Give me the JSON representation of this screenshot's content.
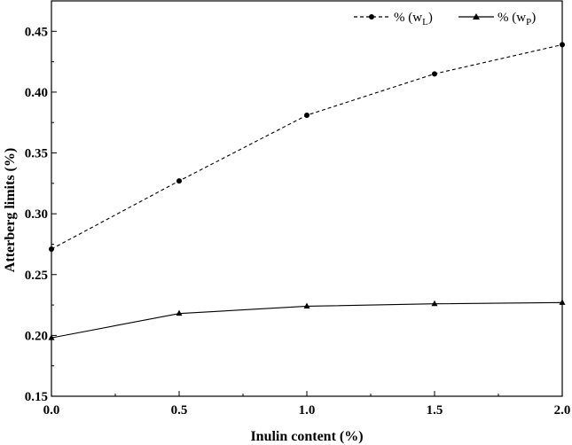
{
  "chart_data": {
    "type": "line",
    "xlabel": "Inulin content (%)",
    "ylabel": "Atterberg limits (%)",
    "xlim": [
      0.0,
      2.0
    ],
    "ylim": [
      0.15,
      0.475
    ],
    "x_ticks": [
      "0.0",
      "0.5",
      "1.0",
      "1.5",
      "2.0"
    ],
    "y_ticks": [
      "0.15",
      "0.20",
      "0.25",
      "0.30",
      "0.35",
      "0.40",
      "0.45"
    ],
    "legend_position": "top-right",
    "grid": false,
    "series": [
      {
        "name": "% (w",
        "name_sub": "L",
        "name_suffix": ")",
        "marker": "circle",
        "line_style": "dashed",
        "x": [
          0.0,
          0.5,
          1.0,
          1.5,
          2.0
        ],
        "values": [
          0.271,
          0.327,
          0.381,
          0.415,
          0.439
        ]
      },
      {
        "name": "% (w",
        "name_sub": "P",
        "name_suffix": ")",
        "marker": "triangle",
        "line_style": "solid",
        "x": [
          0.0,
          0.5,
          1.0,
          1.5,
          2.0
        ],
        "values": [
          0.198,
          0.218,
          0.224,
          0.226,
          0.227
        ]
      }
    ]
  }
}
